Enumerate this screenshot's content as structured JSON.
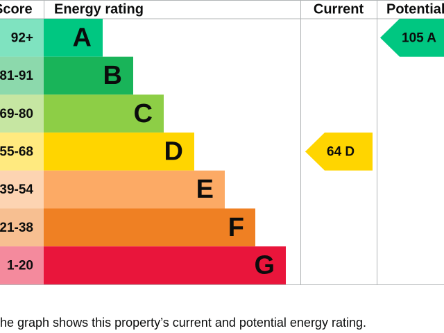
{
  "header": {
    "score": "Score",
    "rating": "Energy rating",
    "current": "Current",
    "potential": "Potential"
  },
  "bands": [
    {
      "range": "92+",
      "letter": "A",
      "color": "#00c781"
    },
    {
      "range": "81-91",
      "letter": "B",
      "color": "#19b459"
    },
    {
      "range": "69-80",
      "letter": "C",
      "color": "#8dce46"
    },
    {
      "range": "55-68",
      "letter": "D",
      "color": "#ffd500"
    },
    {
      "range": "39-54",
      "letter": "E",
      "color": "#fcaa65"
    },
    {
      "range": "21-38",
      "letter": "F",
      "color": "#ef8023"
    },
    {
      "range": "1-20",
      "letter": "G",
      "color": "#e9153b"
    }
  ],
  "current": {
    "score": 64,
    "rating": "D"
  },
  "potential": {
    "score": 105,
    "rating": "A"
  },
  "caption": "The graph shows this property’s current and potential energy rating."
}
